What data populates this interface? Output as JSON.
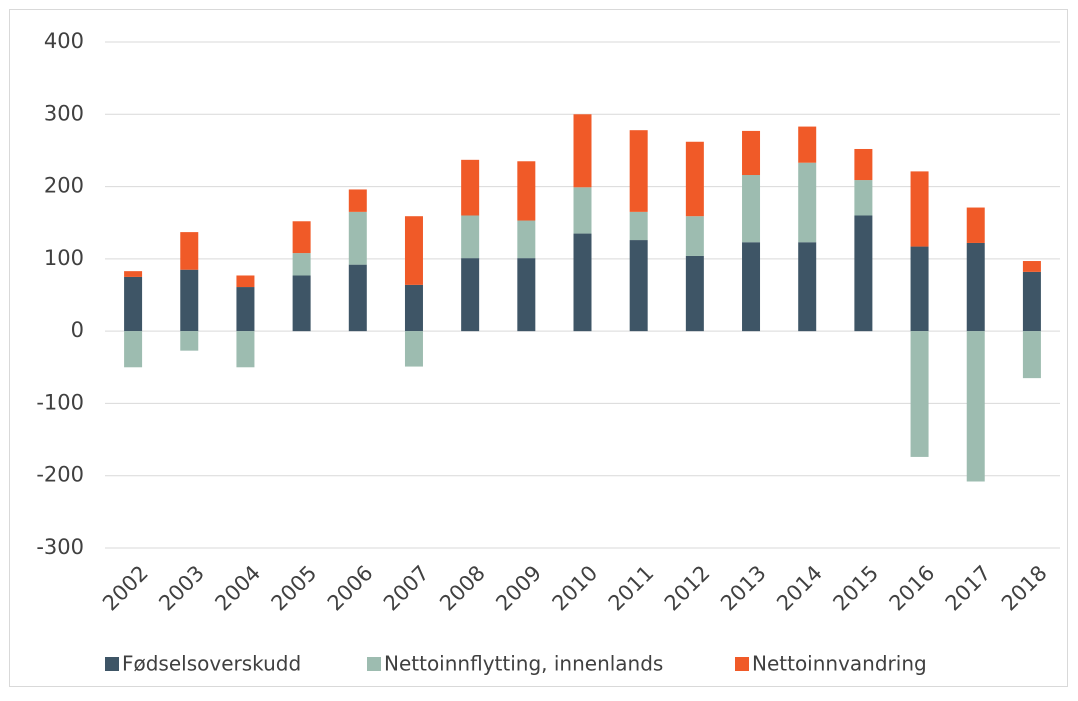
{
  "chart_data": {
    "type": "stacked_bar",
    "categories": [
      "2002",
      "2003",
      "2004",
      "2005",
      "2006",
      "2007",
      "2008",
      "2009",
      "2010",
      "2011",
      "2012",
      "2013",
      "2014",
      "2015",
      "2016",
      "2017",
      "2018"
    ],
    "series": [
      {
        "name": "Fødselsoverskudd",
        "color": "#3e5566",
        "values": [
          75,
          85,
          61,
          77,
          92,
          64,
          101,
          101,
          135,
          126,
          104,
          123,
          123,
          160,
          117,
          122,
          82
        ]
      },
      {
        "name": "Nettoinnflytting, innenlands",
        "color": "#9dbcb0",
        "values": [
          -50,
          -27,
          -50,
          31,
          73,
          -49,
          59,
          52,
          64,
          39,
          55,
          93,
          110,
          49,
          -174,
          -208,
          -65
        ]
      },
      {
        "name": "Nettoinnvandring",
        "color": "#f05a28",
        "values": [
          8,
          52,
          16,
          44,
          31,
          95,
          77,
          82,
          101,
          113,
          103,
          61,
          50,
          43,
          104,
          49,
          15
        ]
      }
    ],
    "ylim": [
      -300,
      400
    ],
    "yticks": [
      -300,
      -200,
      -100,
      0,
      100,
      200,
      300,
      400
    ],
    "grid": true,
    "legend": "bottom"
  }
}
